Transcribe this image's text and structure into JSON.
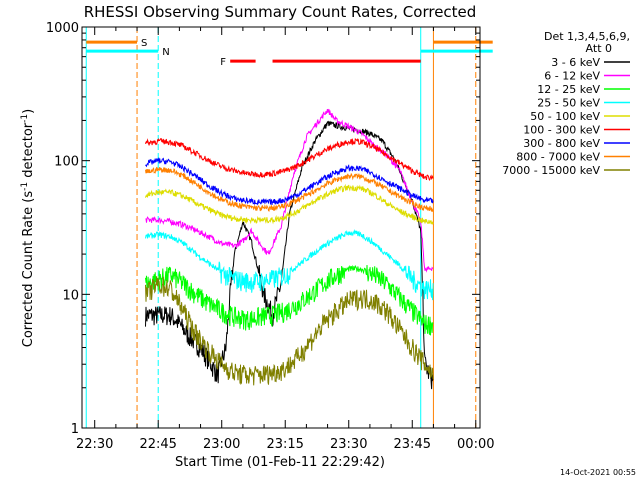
{
  "chart_data": {
    "type": "line",
    "title": "RHESSI Observing Summary Count Rates, Corrected",
    "xlabel": "Start Time (01-Feb-11 22:29:42)",
    "ylabel": "Corrected Count Rate (s",
    "ylabel_sup1": "-1",
    "ylabel_mid": " detector",
    "ylabel_sup2": "-1",
    "ylabel_end": ")",
    "y_scale": "log",
    "ylim": [
      1,
      1000
    ],
    "xlim_minutes": [
      -3,
      91
    ],
    "x_tick_minutes": [
      0,
      15,
      30,
      45,
      60,
      75,
      90
    ],
    "x_tick_labels": [
      "22:30",
      "22:45",
      "23:00",
      "23:15",
      "23:30",
      "23:45",
      "00:00"
    ],
    "y_tick_values": [
      1,
      10,
      100,
      1000
    ],
    "y_tick_labels": [
      "1",
      "10",
      "100",
      "1000"
    ],
    "legend": {
      "header1": "Det 1,3,4,5,6,9,",
      "header2": "Att 0",
      "placement": "right, outside plot"
    },
    "timestamp": "14-Oct-2021 00:55",
    "markers": [
      {
        "label": "S",
        "color": "#ff8000",
        "start_min": -2,
        "end_min": 10,
        "gap_start_min": 80,
        "gap_end_min": 94,
        "level": 770,
        "vline_min": [
          10,
          80
        ],
        "vline_dashed": [
          true,
          false
        ]
      },
      {
        "label": "N",
        "color": "#00ffff",
        "start_min": -2,
        "end_min": 15,
        "gap_start_min": 77,
        "gap_end_min": 94,
        "level": 660,
        "vline_min": [
          15,
          77
        ],
        "vline_dashed": [
          true,
          false
        ]
      },
      {
        "label": "F",
        "color": "#ff0000",
        "segments_min": [
          [
            32,
            38
          ],
          [
            42,
            77
          ]
        ],
        "level": 555
      }
    ],
    "edge_lines": [
      {
        "color": "#00ffff",
        "min": -2,
        "dashed": false
      },
      {
        "color": "#ff8000",
        "min": 90,
        "dashed": true
      },
      {
        "color": "#00ffff",
        "min": 91,
        "dashed": true
      }
    ],
    "series": [
      {
        "name": "3 - 6 keV",
        "color": "#000000",
        "x": [
          12,
          15,
          18,
          20,
          22,
          25,
          27,
          29,
          31,
          32,
          33,
          35,
          37,
          40,
          42,
          44,
          46,
          49,
          52,
          55,
          58,
          62,
          65,
          68,
          71,
          73,
          75,
          77,
          78,
          80
        ],
        "y": [
          7,
          7,
          7,
          6,
          5,
          4,
          3.2,
          2.5,
          4,
          10,
          20,
          35,
          25,
          10,
          7,
          12,
          40,
          90,
          140,
          190,
          180,
          170,
          160,
          140,
          100,
          70,
          50,
          30,
          3,
          2.2
        ]
      },
      {
        "name": "6 - 12 keV",
        "color": "#ff00ff",
        "x": [
          12,
          15,
          18,
          21,
          24,
          27,
          30,
          33,
          35,
          37,
          39,
          41,
          44,
          47,
          50,
          53,
          55,
          57,
          60,
          63,
          66,
          69,
          72,
          75,
          77,
          78,
          80
        ],
        "y": [
          36,
          36,
          35,
          33,
          30,
          27,
          24,
          23,
          25,
          30,
          24,
          20,
          32,
          80,
          150,
          200,
          240,
          200,
          180,
          160,
          130,
          110,
          85,
          50,
          35,
          15,
          16
        ]
      },
      {
        "name": "12 - 25 keV",
        "color": "#00ff00",
        "x": [
          12,
          15,
          18,
          21,
          24,
          27,
          30,
          33,
          36,
          39,
          42,
          45,
          48,
          51,
          54,
          57,
          60,
          63,
          66,
          69,
          72,
          75,
          78,
          80
        ],
        "y": [
          12,
          13,
          14,
          12,
          10,
          8.5,
          7.5,
          6.8,
          6.5,
          6.8,
          7,
          7.5,
          8.5,
          10,
          12,
          14,
          15.5,
          15.5,
          14,
          12,
          9.5,
          7.5,
          6,
          6
        ]
      },
      {
        "name": "25 - 50 keV",
        "color": "#00ffff",
        "x": [
          12,
          15,
          18,
          21,
          24,
          27,
          30,
          33,
          36,
          39,
          42,
          45,
          48,
          51,
          54,
          57,
          60,
          63,
          66,
          69,
          72,
          75,
          78,
          80
        ],
        "y": [
          27,
          28,
          27,
          24,
          20,
          17,
          14.5,
          13,
          12.5,
          12.5,
          13,
          14,
          16.5,
          19.5,
          23,
          26,
          29,
          28,
          24,
          20,
          16.5,
          13,
          11,
          11
        ]
      },
      {
        "name": "50 - 100 keV",
        "color": "#dddd00",
        "x": [
          12,
          15,
          18,
          21,
          24,
          27,
          30,
          33,
          36,
          39,
          42,
          45,
          48,
          51,
          54,
          57,
          60,
          63,
          66,
          69,
          72,
          75,
          78,
          80
        ],
        "y": [
          55,
          58,
          58,
          54,
          48,
          43,
          39,
          37,
          36,
          36,
          36,
          38,
          42,
          48,
          54,
          60,
          63,
          62,
          56,
          48,
          42,
          38,
          35,
          35
        ]
      },
      {
        "name": "100 - 300 keV",
        "color": "#ff0000",
        "x": [
          12,
          15,
          18,
          21,
          24,
          27,
          30,
          33,
          36,
          39,
          42,
          45,
          48,
          51,
          54,
          57,
          60,
          63,
          66,
          69,
          72,
          75,
          78,
          80
        ],
        "y": [
          135,
          140,
          138,
          128,
          113,
          100,
          90,
          84,
          80,
          79,
          80,
          84,
          92,
          104,
          118,
          130,
          140,
          138,
          126,
          110,
          96,
          84,
          75,
          75
        ]
      },
      {
        "name": "300 - 800 keV",
        "color": "#0000ff",
        "x": [
          12,
          15,
          18,
          21,
          24,
          27,
          30,
          33,
          36,
          39,
          42,
          45,
          48,
          51,
          54,
          57,
          60,
          63,
          66,
          69,
          72,
          75,
          78,
          80
        ],
        "y": [
          95,
          100,
          98,
          88,
          76,
          65,
          57,
          52,
          50,
          49,
          49,
          51,
          56,
          64,
          73,
          82,
          88,
          87,
          79,
          70,
          62,
          55,
          50,
          50
        ]
      },
      {
        "name": "800 - 7000 keV",
        "color": "#ff8000",
        "x": [
          12,
          15,
          18,
          21,
          24,
          27,
          30,
          33,
          36,
          39,
          42,
          45,
          48,
          51,
          54,
          57,
          60,
          63,
          66,
          69,
          72,
          75,
          78,
          80
        ],
        "y": [
          82,
          86,
          85,
          77,
          67,
          58,
          51,
          47,
          45,
          44,
          44,
          46,
          51,
          57,
          65,
          72,
          77,
          76,
          69,
          61,
          54,
          48,
          44,
          44
        ]
      },
      {
        "name": "7000 - 15000 keV",
        "color": "#808000",
        "x": [
          12,
          15,
          18,
          21,
          24,
          27,
          30,
          33,
          36,
          39,
          42,
          45,
          48,
          51,
          54,
          57,
          60,
          63,
          66,
          69,
          72,
          75,
          78,
          80
        ],
        "y": [
          10,
          12,
          11,
          7.5,
          5,
          3.8,
          3,
          2.6,
          2.5,
          2.5,
          2.6,
          2.8,
          3.4,
          4.5,
          6,
          7.5,
          9,
          9.5,
          9,
          7.5,
          5.5,
          4,
          3,
          2.5
        ]
      }
    ]
  }
}
